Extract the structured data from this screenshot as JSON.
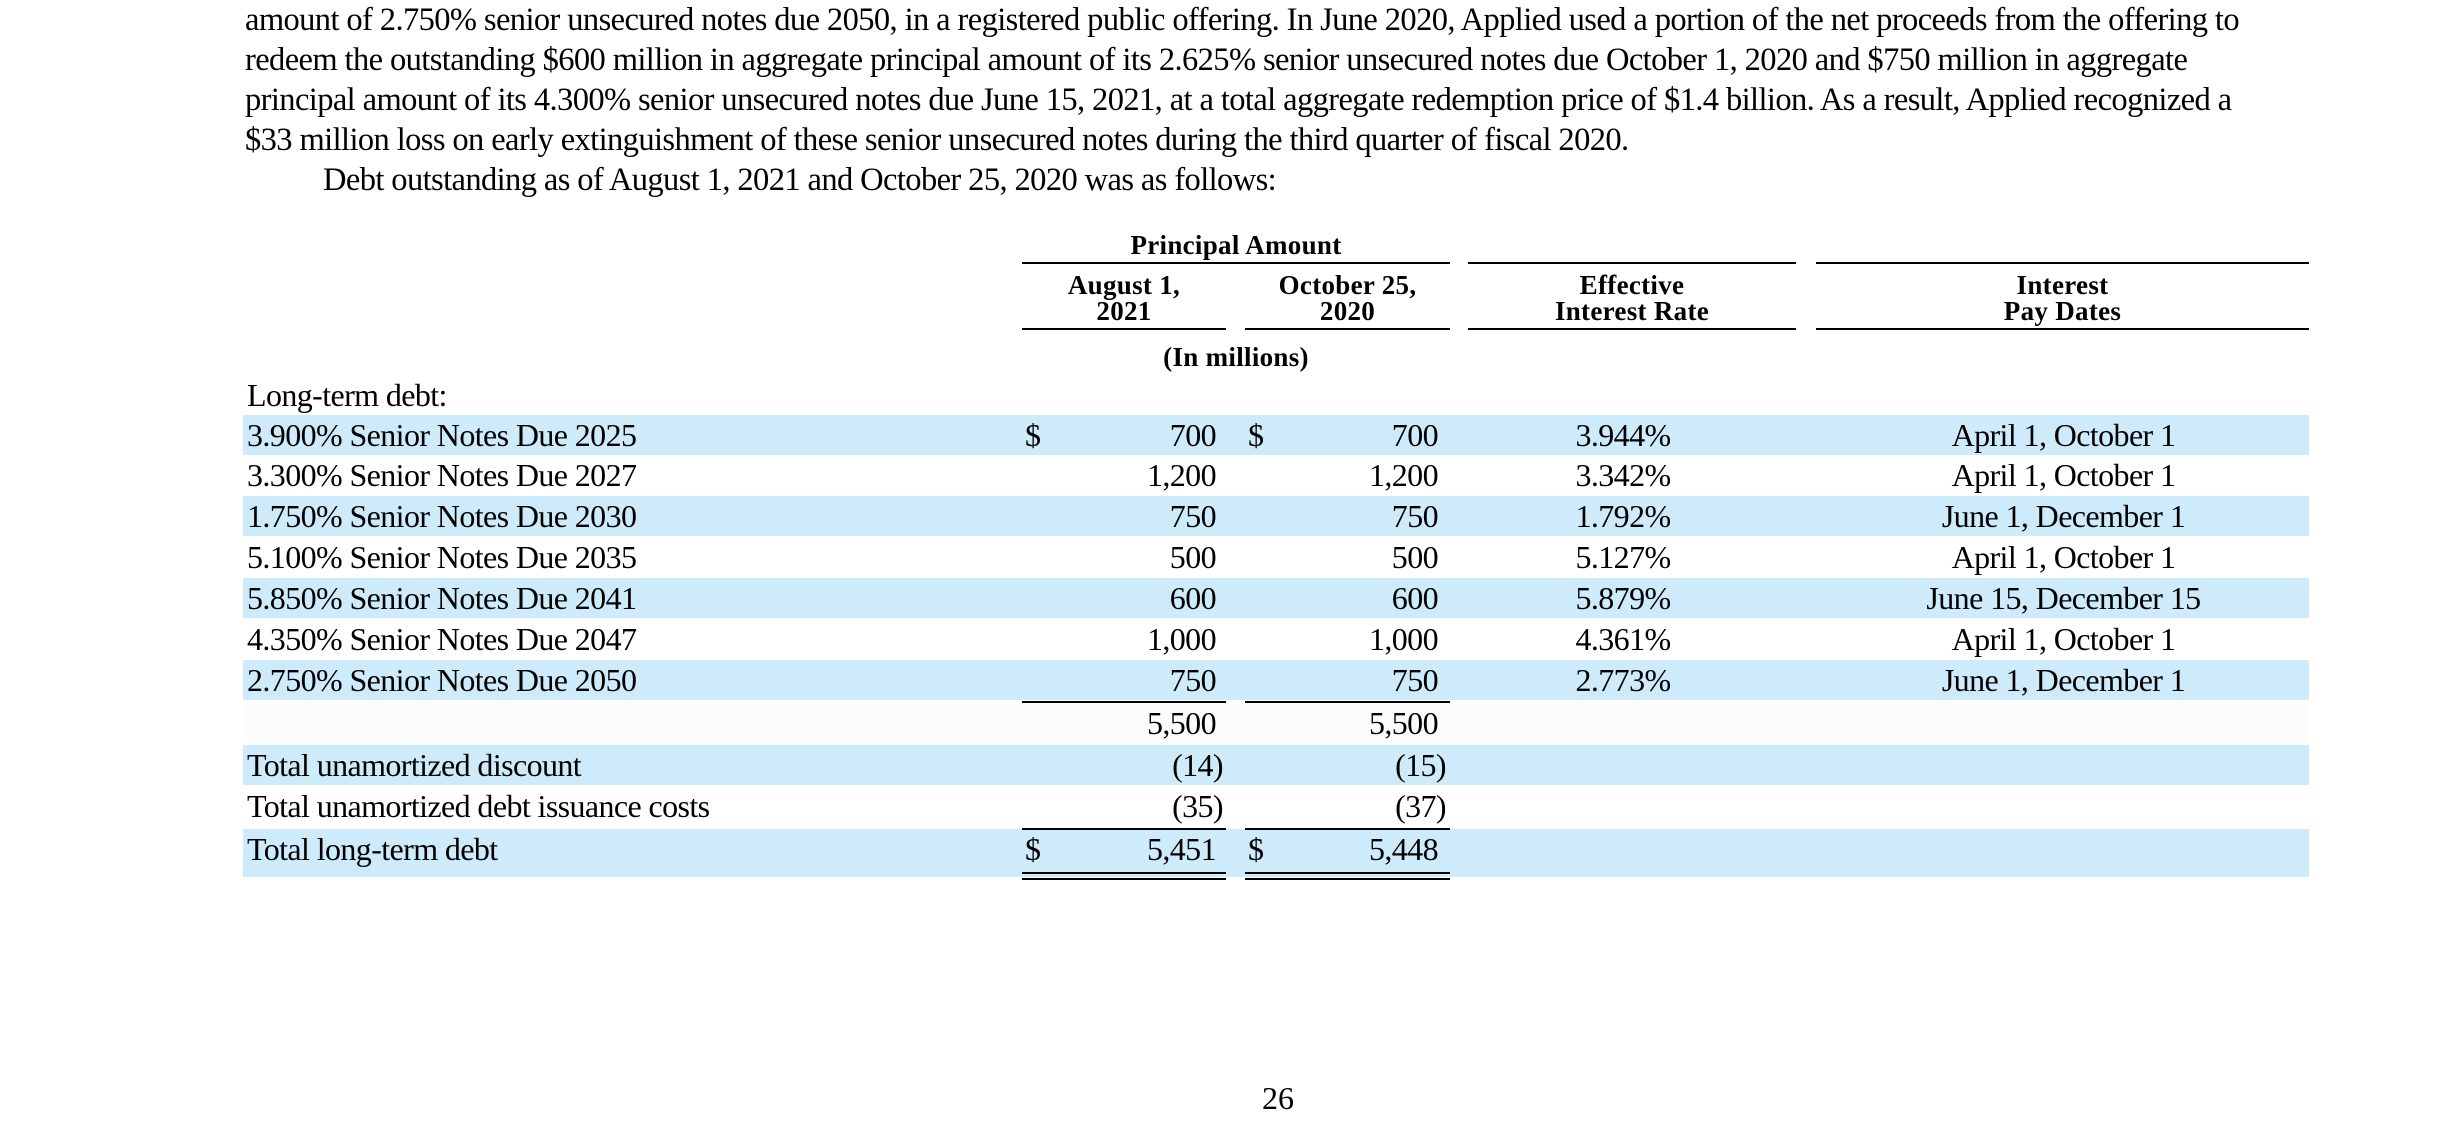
{
  "paragraph1": {
    "lines": [
      "amount of 2.750% senior unsecured notes due 2050, in a registered public offering. In June 2020, Applied used a portion of the net proceeds from the offering to",
      "redeem the outstanding $600 million in aggregate principal amount of its 2.625% senior unsecured notes due October 1, 2020 and $750 million in aggregate",
      "principal amount of its 4.300% senior unsecured notes due June 15, 2021, at a total aggregate redemption price of $1.4 billion. As a result, Applied recognized a",
      "$33 million loss on early extinguishment of these senior unsecured notes during the third quarter of fiscal 2020."
    ]
  },
  "paragraph2": "Debt outstanding as of August 1, 2021 and October 25, 2020 was as follows:",
  "table": {
    "group_header": "Principal Amount",
    "col_aug_line1": "August 1,",
    "col_aug_line2": "2021",
    "col_oct_line1": "October 25,",
    "col_oct_line2": "2020",
    "col_rate_line1": "Effective",
    "col_rate_line2": "Interest Rate",
    "col_pay_line1": "Interest",
    "col_pay_line2": "Pay Dates",
    "units": "(In millions)",
    "section_label": "Long-term debt:",
    "currency": "$",
    "notes": [
      {
        "label": "3.900% Senior Notes Due 2025",
        "aug": "700",
        "oct": "700",
        "rate": "3.944%",
        "pay": "April 1, October 1"
      },
      {
        "label": "3.300% Senior Notes Due 2027",
        "aug": "1,200",
        "oct": "1,200",
        "rate": "3.342%",
        "pay": "April 1, October 1"
      },
      {
        "label": "1.750% Senior Notes Due 2030",
        "aug": "750",
        "oct": "750",
        "rate": "1.792%",
        "pay": "June 1, December 1"
      },
      {
        "label": "5.100% Senior Notes Due 2035",
        "aug": "500",
        "oct": "500",
        "rate": "5.127%",
        "pay": "April 1, October 1"
      },
      {
        "label": "5.850% Senior Notes Due 2041",
        "aug": "600",
        "oct": "600",
        "rate": "5.879%",
        "pay": "June 15, December 15"
      },
      {
        "label": "4.350% Senior Notes Due 2047",
        "aug": "1,000",
        "oct": "1,000",
        "rate": "4.361%",
        "pay": "April 1, October 1"
      },
      {
        "label": "2.750% Senior Notes Due 2050",
        "aug": "750",
        "oct": "750",
        "rate": "2.773%",
        "pay": "June 1, December 1"
      }
    ],
    "subtotal": {
      "aug": "5,500",
      "oct": "5,500"
    },
    "discount": {
      "label": "Total unamortized discount",
      "aug": "(14)",
      "oct": "(15)"
    },
    "issuance": {
      "label": "Total unamortized debt issuance costs",
      "aug": "(35)",
      "oct": "(37)"
    },
    "total": {
      "label": "Total long-term debt",
      "aug": "5,451",
      "oct": "5,448"
    }
  },
  "page_number": "26"
}
